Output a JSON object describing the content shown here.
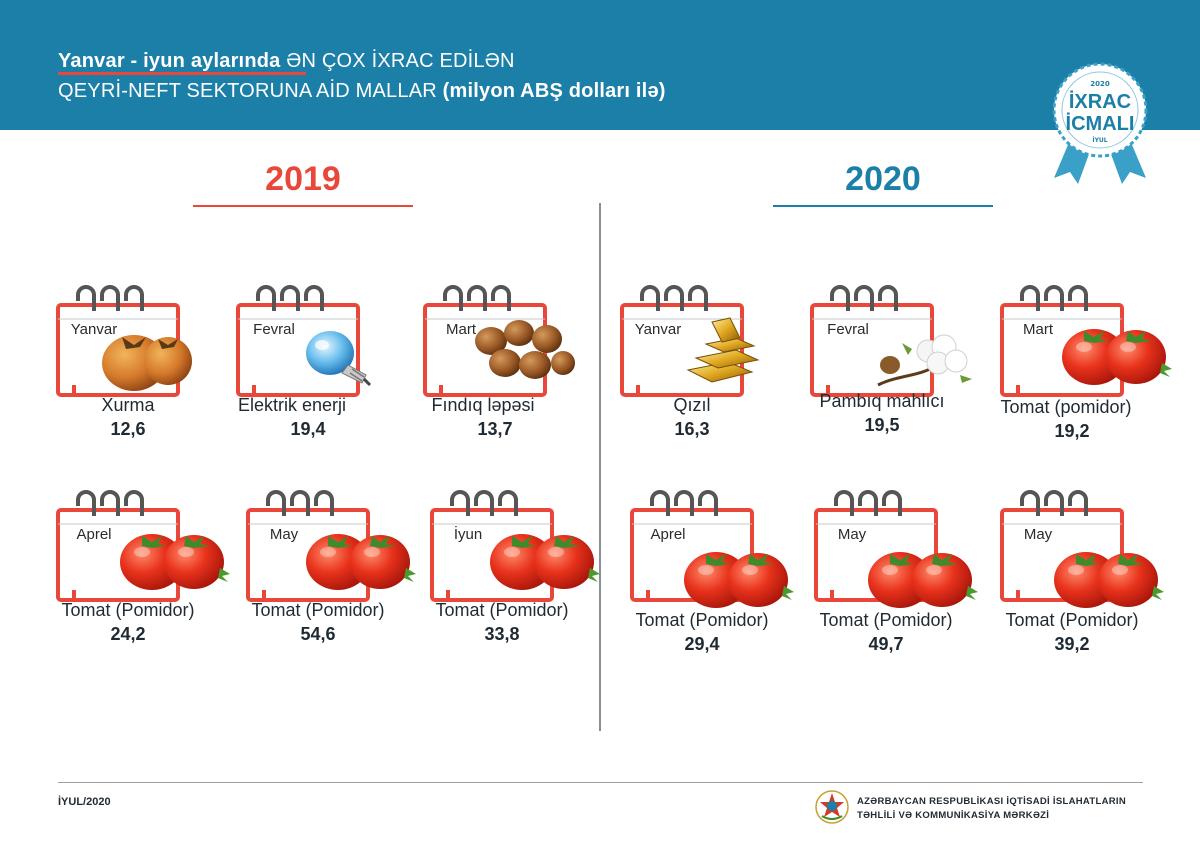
{
  "header": {
    "title_bold": "Yanvar - iyun  aylarında",
    "title_rest": " ƏN ÇOX İXRAC EDİLƏN",
    "subtitle_plain": "QEYRİ-NEFT SEKTORUNA AİD MALLAR",
    "subtitle_bold": " (milyon ABŞ dolları ilə)"
  },
  "badge": {
    "year": "2020",
    "line1": "İXRAC",
    "line2": "İCMALI",
    "month": "İYUL"
  },
  "colors": {
    "header": "#1b7fa7",
    "accent_red": "#e8473a",
    "accent_blue": "#1b7fa7"
  },
  "years": {
    "left": "2019",
    "right": "2020"
  },
  "items_2019": [
    {
      "month": "Yanvar",
      "name": "Xurma",
      "value": "12,6",
      "icon": "persimmon-icon"
    },
    {
      "month": "Fevral",
      "name": "Elektrik enerji",
      "value": "19,4",
      "icon": "light-bulb-icon"
    },
    {
      "month": "Mart",
      "name": "Fındıq ləpəsi",
      "value": "13,7",
      "icon": "hazelnut-icon"
    },
    {
      "month": "Aprel",
      "name": "Tomat (Pomidor)",
      "value": "24,2",
      "icon": "tomato-icon"
    },
    {
      "month": "May",
      "name": "Tomat (Pomidor)",
      "value": "54,6",
      "icon": "tomato-icon"
    },
    {
      "month": "İyun",
      "name": "Tomat (Pomidor)",
      "value": "33,8",
      "icon": "tomato-icon"
    }
  ],
  "items_2020": [
    {
      "month": "Yanvar",
      "name": "Qızıl",
      "value": "16,3",
      "icon": "gold-bars-icon"
    },
    {
      "month": "Fevral",
      "name": "Pambıq mahlıcı",
      "value": "19,5",
      "icon": "cotton-icon"
    },
    {
      "month": "Mart",
      "name": "Tomat (pomidor)",
      "value": "19,2",
      "icon": "tomato-icon"
    },
    {
      "month": "Aprel",
      "name": "Tomat (Pomidor)",
      "value": "29,4",
      "icon": "tomato-icon"
    },
    {
      "month": "May",
      "name": "Tomat (Pomidor)",
      "value": "49,7",
      "icon": "tomato-icon"
    },
    {
      "month": "May",
      "name": "Tomat (Pomidor)",
      "value": "39,2",
      "icon": "tomato-icon"
    }
  ],
  "footer": {
    "date": "İYUL/2020",
    "org_line1": "AZƏRBAYCAN RESPUBLİKASI İQTİSADİ İSLAHATLARIN",
    "org_line2": "TƏHLİLİ VƏ KOMMUNİKASİYA MƏRKƏZİ"
  }
}
